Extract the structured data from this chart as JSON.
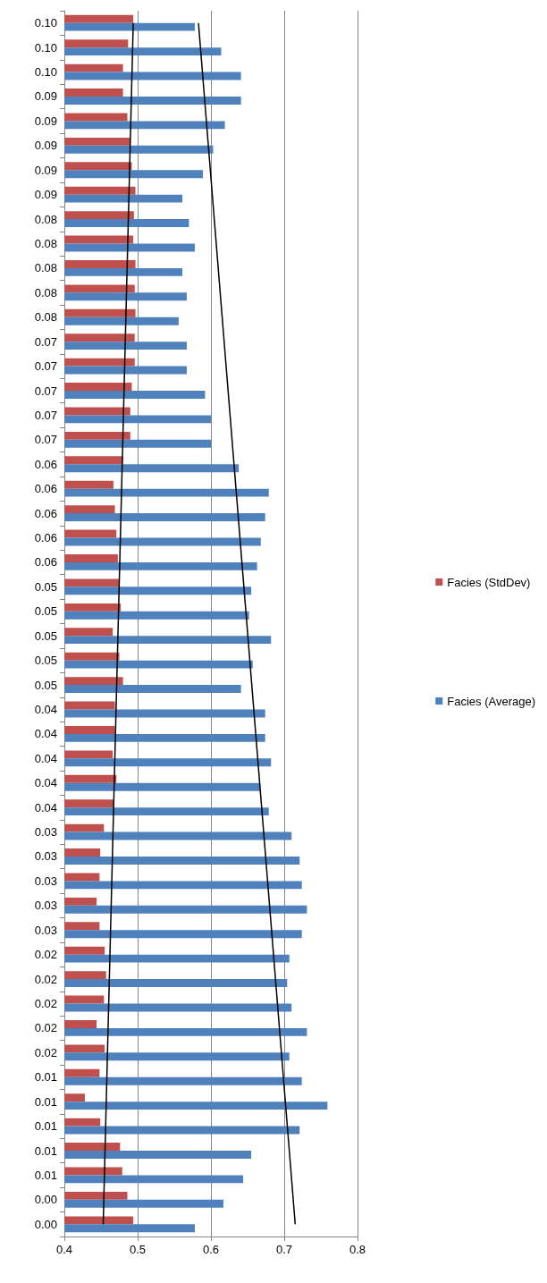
{
  "chart_data": {
    "type": "bar",
    "orientation": "horizontal",
    "categories": [
      "0.10",
      "0.10",
      "0.10",
      "0.09",
      "0.09",
      "0.09",
      "0.09",
      "0.09",
      "0.08",
      "0.08",
      "0.08",
      "0.08",
      "0.08",
      "0.07",
      "0.07",
      "0.07",
      "0.07",
      "0.07",
      "0.06",
      "0.06",
      "0.06",
      "0.06",
      "0.06",
      "0.05",
      "0.05",
      "0.05",
      "0.05",
      "0.05",
      "0.04",
      "0.04",
      "0.04",
      "0.04",
      "0.04",
      "0.03",
      "0.03",
      "0.03",
      "0.03",
      "0.03",
      "0.02",
      "0.02",
      "0.02",
      "0.02",
      "0.02",
      "0.01",
      "0.01",
      "0.01",
      "0.01",
      "0.01",
      "0.00",
      "0.00"
    ],
    "series": [
      {
        "name": "Facies (StdDev)",
        "color": "#c0504d",
        "values": [
          0.494,
          0.487,
          0.48,
          0.48,
          0.486,
          0.49,
          0.492,
          0.497,
          0.495,
          0.494,
          0.497,
          0.496,
          0.497,
          0.496,
          0.496,
          0.492,
          0.49,
          0.49,
          0.48,
          0.467,
          0.469,
          0.471,
          0.473,
          0.475,
          0.477,
          0.466,
          0.475,
          0.48,
          0.469,
          0.469,
          0.466,
          0.471,
          0.467,
          0.454,
          0.449,
          0.448,
          0.444,
          0.448,
          0.455,
          0.457,
          0.454,
          0.444,
          0.455,
          0.448,
          0.428,
          0.449,
          0.476,
          0.479,
          0.486,
          0.494
        ]
      },
      {
        "name": "Facies (Average)",
        "color": "#4f81bd",
        "values": [
          0.578,
          0.614,
          0.641,
          0.641,
          0.619,
          0.603,
          0.589,
          0.561,
          0.57,
          0.578,
          0.561,
          0.567,
          0.556,
          0.567,
          0.567,
          0.592,
          0.6,
          0.6,
          0.638,
          0.679,
          0.674,
          0.668,
          0.663,
          0.655,
          0.652,
          0.682,
          0.657,
          0.641,
          0.674,
          0.674,
          0.682,
          0.667,
          0.679,
          0.71,
          0.721,
          0.724,
          0.731,
          0.724,
          0.707,
          0.704,
          0.71,
          0.731,
          0.707,
          0.724,
          0.759,
          0.721,
          0.655,
          0.644,
          0.617,
          0.578
        ]
      },
      {
        "type": "line",
        "color": "#000000",
        "values": [
          0.494,
          null,
          null,
          null,
          null,
          null,
          null,
          null,
          null,
          null,
          null,
          null,
          null,
          null,
          null,
          null,
          null,
          null,
          null,
          null,
          null,
          null,
          null,
          null,
          null,
          null,
          null,
          null,
          null,
          null,
          null,
          null,
          null,
          null,
          null,
          null,
          null,
          null,
          null,
          null,
          null,
          null,
          null,
          null,
          null,
          null,
          null,
          null,
          null,
          0.453
        ]
      },
      {
        "type": "line",
        "color": "#000000",
        "values": [
          0.583,
          null,
          null,
          null,
          null,
          null,
          null,
          null,
          null,
          null,
          null,
          null,
          null,
          null,
          null,
          null,
          null,
          null,
          null,
          null,
          null,
          null,
          null,
          null,
          null,
          null,
          null,
          null,
          null,
          null,
          null,
          null,
          null,
          null,
          null,
          null,
          null,
          null,
          null,
          null,
          null,
          null,
          null,
          null,
          null,
          null,
          null,
          null,
          null,
          0.715
        ]
      }
    ],
    "xlim": [
      0.4,
      0.8
    ],
    "xticks": [
      0.4,
      0.5,
      0.6,
      0.7,
      0.8
    ],
    "grid": "x",
    "legend": "right",
    "marker": "none",
    "line_style": "solid"
  }
}
